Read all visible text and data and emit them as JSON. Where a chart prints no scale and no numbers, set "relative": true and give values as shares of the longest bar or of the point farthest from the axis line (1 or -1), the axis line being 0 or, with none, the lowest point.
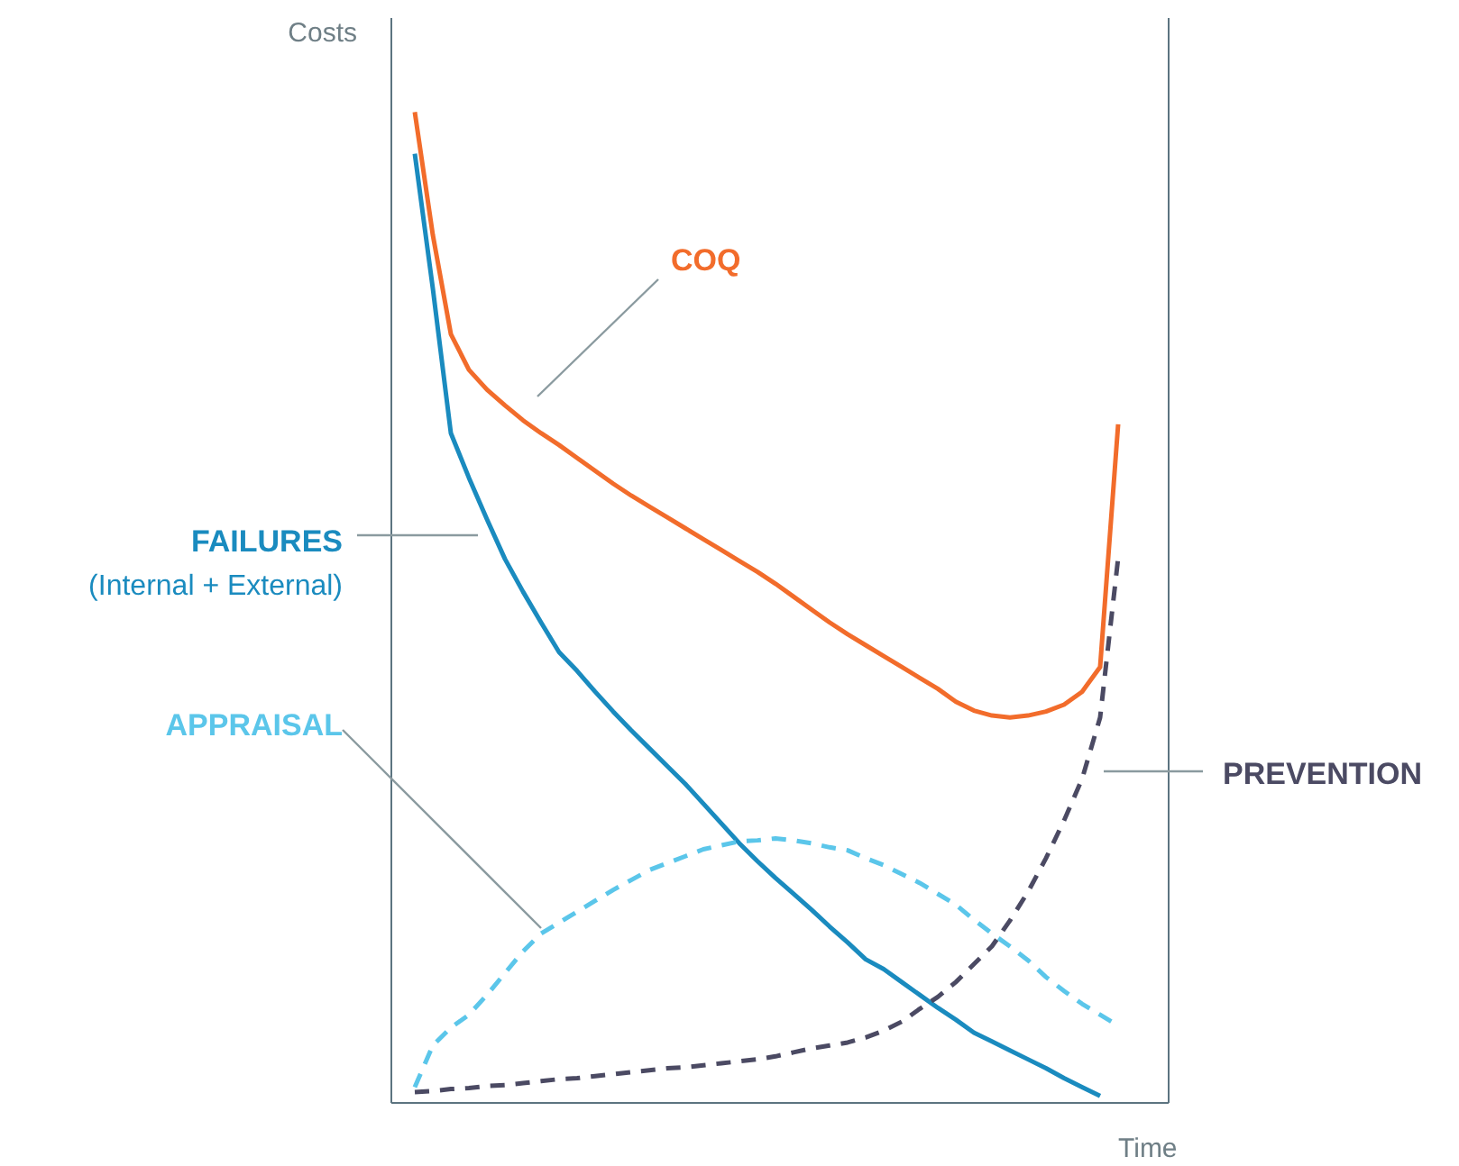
{
  "chart_data": {
    "type": "line",
    "relative": true,
    "xlabel": "Time",
    "ylabel": "Costs",
    "annotations": [
      "(Internal + External)"
    ],
    "marker": "none",
    "categories": [
      null,
      null,
      null,
      null,
      null,
      null,
      null,
      null,
      null,
      null,
      null,
      null,
      null,
      null,
      null,
      null,
      null,
      null,
      null,
      null,
      null,
      null,
      null,
      null,
      null,
      null,
      null,
      null,
      null,
      null,
      null,
      null,
      null,
      null,
      null,
      null,
      null,
      null,
      null,
      null,
      null
    ],
    "series": [
      {
        "name": "COQ",
        "color": "#f26c2b",
        "line_style": "solid",
        "values": [
          1.0,
          0.876,
          0.776,
          0.74,
          0.72,
          0.704,
          0.689,
          0.676,
          0.664,
          0.651,
          0.638,
          0.625,
          0.613,
          0.602,
          0.591,
          0.58,
          0.569,
          0.558,
          0.547,
          0.536,
          0.524,
          0.511,
          0.498,
          0.485,
          0.473,
          0.462,
          0.451,
          0.44,
          0.429,
          0.418,
          0.405,
          0.396,
          0.391,
          0.389,
          0.391,
          0.395,
          0.402,
          0.415,
          0.44,
          0.685,
          null
        ]
      },
      {
        "name": "FAILURES",
        "color": "#1a8bbf",
        "line_style": "solid",
        "values": [
          0.958,
          0.822,
          0.676,
          0.631,
          0.589,
          0.549,
          0.516,
          0.485,
          0.455,
          0.436,
          0.415,
          0.395,
          0.376,
          0.358,
          0.34,
          0.322,
          0.302,
          0.282,
          0.262,
          0.244,
          0.227,
          0.211,
          0.195,
          0.178,
          0.162,
          0.145,
          0.135,
          0.122,
          0.109,
          0.096,
          0.084,
          0.071,
          0.062,
          0.053,
          0.044,
          0.035,
          0.025,
          0.016,
          0.007,
          null,
          null
        ]
      },
      {
        "name": "APPRAISAL",
        "color": "#5bc6ea",
        "line_style": "dashed",
        "values": [
          0.016,
          0.058,
          0.076,
          0.089,
          0.109,
          0.131,
          0.153,
          0.171,
          0.182,
          0.193,
          0.204,
          0.215,
          0.225,
          0.235,
          0.242,
          0.249,
          0.256,
          0.26,
          0.264,
          0.265,
          0.267,
          0.265,
          0.262,
          0.258,
          0.255,
          0.247,
          0.24,
          0.231,
          0.222,
          0.211,
          0.2,
          0.185,
          0.171,
          0.158,
          0.144,
          0.127,
          0.113,
          0.1,
          0.089,
          0.078,
          null
        ]
      },
      {
        "name": "PREVENTION",
        "color": "#4b4a63",
        "line_style": "dashed",
        "values": [
          0.011,
          0.012,
          0.014,
          0.015,
          0.017,
          0.018,
          0.02,
          0.022,
          0.024,
          0.025,
          0.027,
          0.029,
          0.031,
          0.033,
          0.035,
          0.036,
          0.038,
          0.04,
          0.042,
          0.044,
          0.047,
          0.051,
          0.055,
          0.058,
          0.061,
          0.066,
          0.073,
          0.082,
          0.095,
          0.107,
          0.122,
          0.14,
          0.158,
          0.184,
          0.213,
          0.247,
          0.285,
          0.327,
          0.389,
          0.55,
          null
        ]
      }
    ]
  }
}
